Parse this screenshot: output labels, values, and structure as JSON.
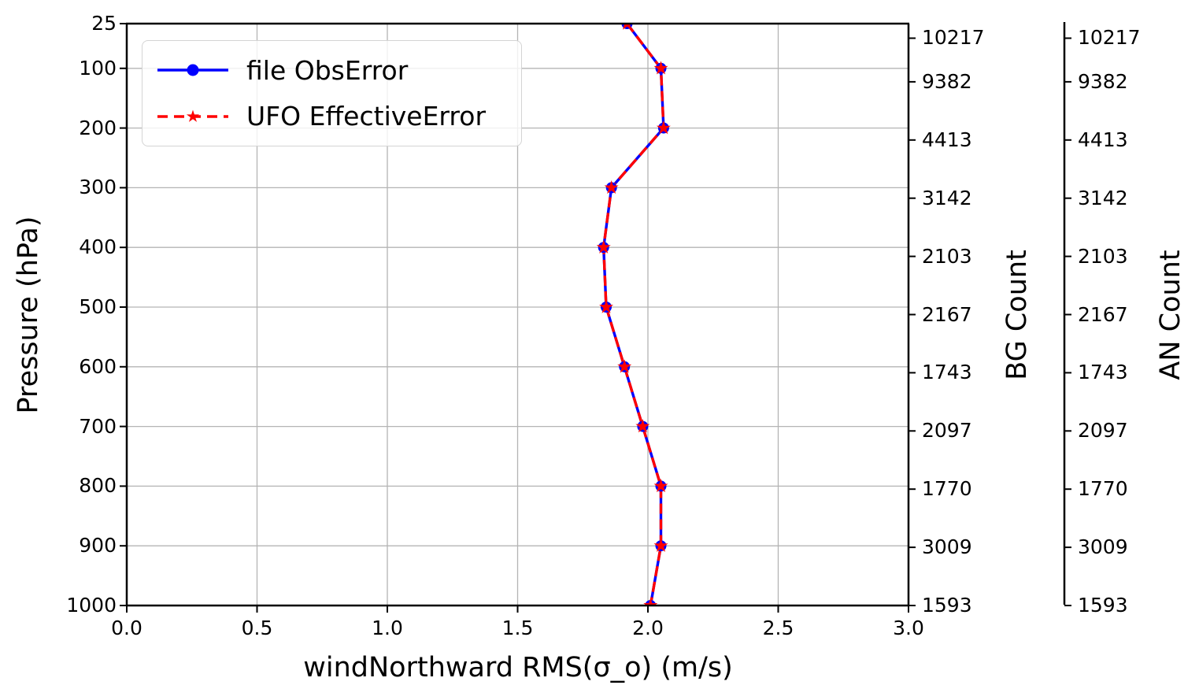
{
  "figure": {
    "ylabel": "Pressure (hPa)",
    "xlabel": "windNorthward RMS(σ_o) (m/s)",
    "bg_axis_label": "BG Count",
    "an_axis_label": "AN Count"
  },
  "legend": {
    "items": [
      {
        "label": "file ObsError",
        "color": "#0000ff",
        "linestyle": "solid",
        "marker": "circle"
      },
      {
        "label": "UFO EffectiveError",
        "color": "#ff0000",
        "linestyle": "dashed",
        "marker": "star"
      }
    ]
  },
  "chart_data": {
    "type": "line",
    "profile_orientation": "vertical",
    "title": "",
    "xlabel": "windNorthward RMS(σ_o) (m/s)",
    "ylabel": "Pressure (hPa)",
    "xlim": [
      0.0,
      3.0
    ],
    "ylim_pressure_top_to_bottom": [
      25,
      1000
    ],
    "x_ticks": [
      "0.0",
      "0.5",
      "1.0",
      "1.5",
      "2.0",
      "2.5",
      "3.0"
    ],
    "x_tick_values": [
      0.0,
      0.5,
      1.0,
      1.5,
      2.0,
      2.5,
      3.0
    ],
    "pressure_levels": [
      25,
      100,
      200,
      300,
      400,
      500,
      600,
      700,
      800,
      900,
      1000
    ],
    "series": [
      {
        "name": "file ObsError",
        "color": "#0000ff",
        "linestyle": "solid",
        "marker": "circle",
        "values": [
          1.92,
          2.05,
          2.06,
          1.86,
          1.83,
          1.84,
          1.91,
          1.98,
          2.05,
          2.05,
          2.01
        ]
      },
      {
        "name": "UFO EffectiveError",
        "color": "#ff0000",
        "linestyle": "dashed",
        "marker": "star",
        "values": [
          1.92,
          2.05,
          2.06,
          1.86,
          1.83,
          1.84,
          1.91,
          1.98,
          2.05,
          2.05,
          2.01
        ]
      }
    ],
    "right_axes": [
      {
        "label": "BG Count",
        "counts": [
          10217,
          9382,
          4413,
          3142,
          2103,
          2167,
          1743,
          2097,
          1770,
          3009,
          1593
        ]
      },
      {
        "label": "AN Count",
        "counts": [
          10217,
          9382,
          4413,
          3142,
          2103,
          2167,
          1743,
          2097,
          1770,
          3009,
          1593
        ]
      }
    ],
    "grid": true,
    "grid_color": "#b4b4b4",
    "spine_color": "#000000",
    "legend_position": "upper left"
  }
}
